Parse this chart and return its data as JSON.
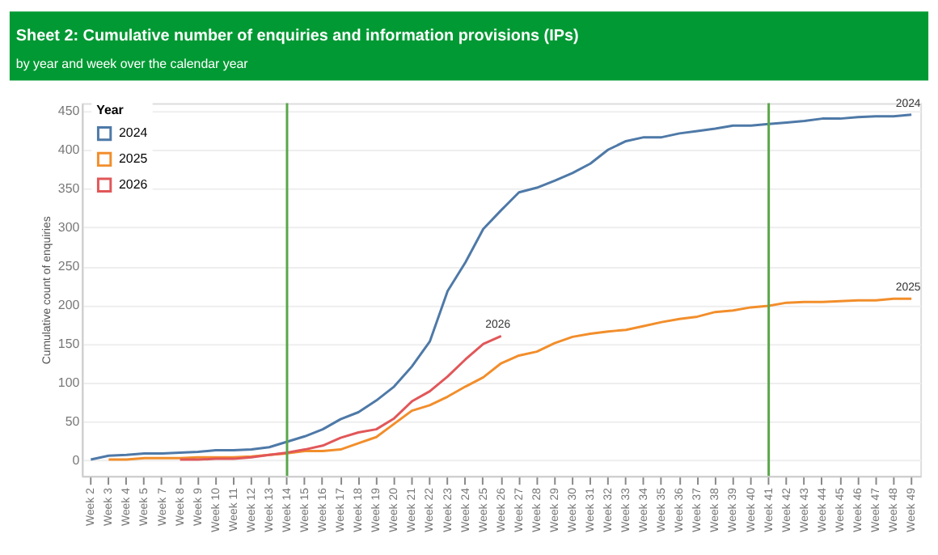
{
  "chart_data": {
    "type": "line",
    "title": "Sheet 2: Cumulative number of enquiries and information provisions (IPs)",
    "subtitle": "by year and week over the calendar year",
    "ylabel": "Cumulative count of enquiries",
    "legend_title": "Year",
    "legend": "top left",
    "grid": "y",
    "categories": [
      "Week 2",
      "Week 3",
      "Week 4",
      "Week 5",
      "Week 7",
      "Week 8",
      "Week 9",
      "Week 10",
      "Week 11",
      "Week 12",
      "Week 13",
      "Week 14",
      "Week 15",
      "Week 16",
      "Week 17",
      "Week 18",
      "Week 19",
      "Week 20",
      "Week 21",
      "Week 22",
      "Week 23",
      "Week 24",
      "Week 25",
      "Week 26",
      "Week 27",
      "Week 28",
      "Week 29",
      "Week 30",
      "Week 31",
      "Week 32",
      "Week 33",
      "Week 34",
      "Week 35",
      "Week 36",
      "Week 37",
      "Week 38",
      "Week 39",
      "Week 40",
      "Week 41",
      "Week 42",
      "Week 43",
      "Week 44",
      "Week 45",
      "Week 46",
      "Week 47",
      "Week 48",
      "Week 49"
    ],
    "series": [
      {
        "name": "2024",
        "color": "#4e79a7",
        "values": [
          1,
          6,
          7,
          9,
          9,
          10,
          11,
          13,
          13,
          14,
          17,
          24,
          31,
          40,
          53,
          62,
          77,
          95,
          121,
          153,
          218,
          255,
          298,
          322,
          345,
          351,
          360,
          370,
          382,
          400,
          411,
          416,
          416,
          421,
          424,
          427,
          431,
          431,
          433,
          435,
          437,
          440,
          440,
          442,
          443,
          443,
          445
        ]
      },
      {
        "name": "2025",
        "color": "#f28e2b",
        "values": [
          null,
          1,
          1,
          3,
          3,
          3,
          4,
          4,
          4,
          5,
          7,
          9,
          12,
          12,
          14,
          22,
          30,
          47,
          64,
          71,
          82,
          95,
          107,
          125,
          135,
          140,
          151,
          159,
          163,
          166,
          168,
          173,
          178,
          182,
          185,
          191,
          193,
          197,
          199,
          203,
          204,
          204,
          205,
          206,
          206,
          208,
          208
        ]
      },
      {
        "name": "2026",
        "color": "#e15759",
        "values": [
          null,
          null,
          null,
          null,
          null,
          1,
          1,
          2,
          2,
          4,
          7,
          10,
          14,
          19,
          29,
          36,
          40,
          54,
          76,
          89,
          108,
          130,
          150,
          160,
          null,
          null,
          null,
          null,
          null,
          null,
          null,
          null,
          null,
          null,
          null,
          null,
          null,
          null,
          null,
          null,
          null,
          null,
          null,
          null,
          null,
          null,
          null
        ]
      }
    ],
    "ylim": [
      -20,
      460
    ],
    "yticks": [
      0,
      50,
      100,
      150,
      200,
      250,
      300,
      350,
      400,
      450
    ],
    "ref_lines": [
      {
        "axis": "x",
        "value": "Week 14",
        "color": "#5aa64a"
      },
      {
        "axis": "x",
        "value": "Week 41",
        "color": "#5aa64a"
      }
    ],
    "line_style": "solid",
    "marker": "none"
  }
}
